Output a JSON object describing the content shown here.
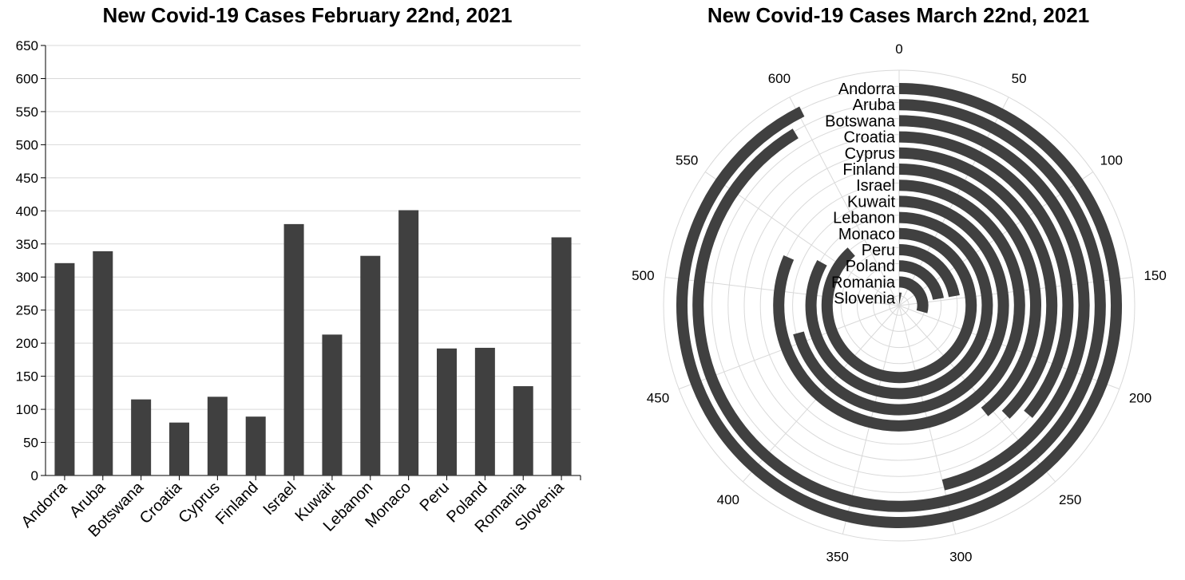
{
  "colors": {
    "bar": "#404040",
    "grid": "#d9d9d9",
    "axis": "#000000"
  },
  "chart_data": [
    {
      "type": "bar",
      "title": "New Covid-19 Cases February 22nd, 2021",
      "xlabel": "",
      "ylabel": "",
      "categories": [
        "Andorra",
        "Aruba",
        "Botswana",
        "Croatia",
        "Cyprus",
        "Finland",
        "Israel",
        "Kuwait",
        "Lebanon",
        "Monaco",
        "Peru",
        "Poland",
        "Romania",
        "Slovenia"
      ],
      "values": [
        321,
        339,
        115,
        80,
        119,
        89,
        380,
        213,
        332,
        401,
        192,
        193,
        135,
        360
      ],
      "ylim": [
        0,
        650
      ],
      "yticks": [
        0,
        50,
        100,
        150,
        200,
        250,
        300,
        350,
        400,
        450,
        500,
        550,
        600,
        650
      ],
      "grid": true
    },
    {
      "type": "radial_bar",
      "title": "New Covid-19 Cases March 22nd, 2021",
      "categories": [
        "Andorra",
        "Aruba",
        "Botswana",
        "Croatia",
        "Cyprus",
        "Finland",
        "Israel",
        "Kuwait",
        "Lebanon",
        "Monaco",
        "Peru",
        "Poland",
        "Romania",
        "Slovenia"
      ],
      "values": [
        602,
        594,
        300,
        235,
        245,
        255,
        530,
        460,
        540,
        575,
        145,
        145,
        190,
        20
      ],
      "angular_range": [
        0,
        650
      ],
      "angular_ticks": [
        0,
        50,
        100,
        150,
        200,
        250,
        300,
        350,
        400,
        450,
        500,
        550,
        600
      ],
      "grid": true
    }
  ]
}
